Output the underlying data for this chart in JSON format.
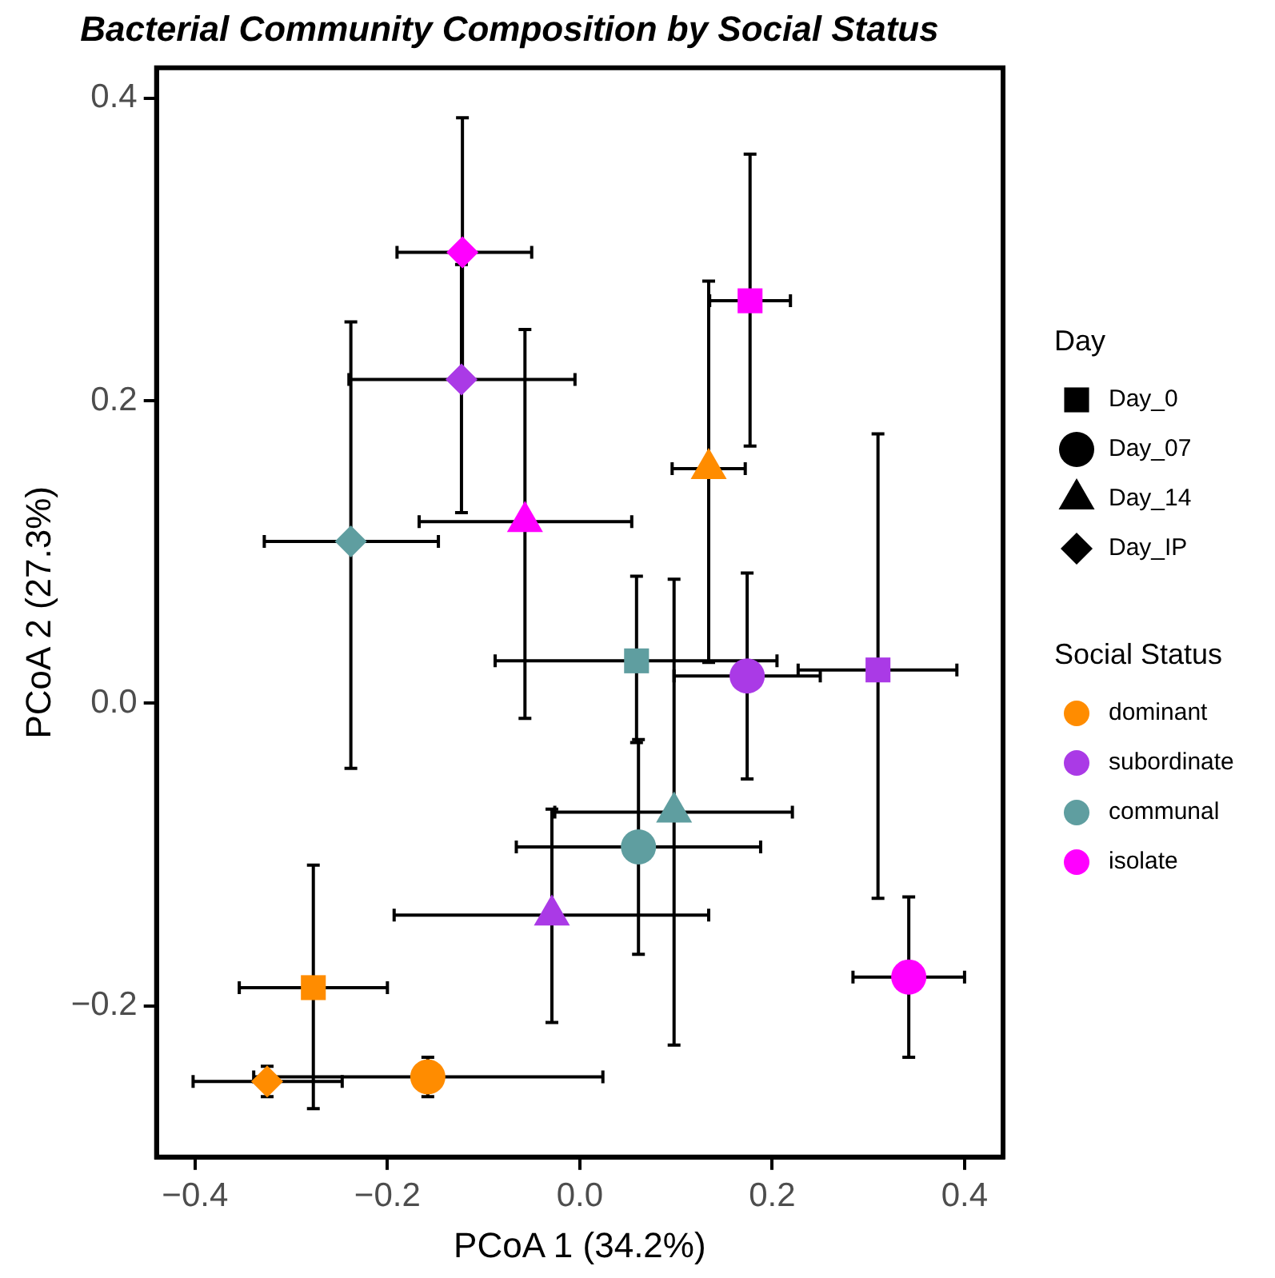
{
  "chart_data": {
    "type": "scatter",
    "title": "Bacterial Community Composition by Social Status",
    "xlabel": "PCoA 1 (34.2%)",
    "ylabel": "PCoA 2 (27.3%)",
    "legend_title": [
      "Day",
      "Social Status"
    ],
    "xlim": [
      -0.44,
      0.44
    ],
    "ylim": [
      -0.3,
      0.42
    ],
    "xticks": [
      {
        "value": -0.4,
        "label": "−0.4"
      },
      {
        "value": -0.2,
        "label": "−0.2"
      },
      {
        "value": 0,
        "label": "0.0"
      },
      0.2,
      0.4
    ],
    "yticks": [
      {
        "value": -0.2,
        "label": "−0.2"
      },
      {
        "value": 0,
        "label": "0.0"
      },
      0.2,
      0.4
    ],
    "grid": false,
    "legend": "right",
    "series": [
      {
        "name": "Day_0",
        "color": "#000000",
        "marker": "square"
      },
      {
        "name": "Day_07",
        "color": "#000000",
        "marker": "circle"
      },
      {
        "name": "Day_14",
        "color": "#000000",
        "marker": "triangle"
      },
      {
        "name": "Day_IP",
        "color": "#000000",
        "marker": "diamond"
      },
      {
        "name": "dominant",
        "color": "#ff8c00",
        "marker": [
          "square",
          "circle",
          "triangle",
          "diamond"
        ],
        "x": [
          -0.277,
          -0.158,
          0.134,
          -0.325
        ],
        "values": [
          -0.188,
          -0.247,
          0.155,
          -0.25
        ],
        "errors": [
          [
            -0.268,
            -0.107
          ],
          [
            -0.26,
            -0.234
          ],
          [
            0.027,
            0.279
          ],
          [
            -0.26,
            -0.24
          ]
        ],
        "xerrors": [
          [
            -0.354,
            -0.2
          ],
          [
            -0.339,
            0.024
          ],
          [
            0.096,
            0.172
          ],
          [
            -0.402,
            -0.247
          ]
        ]
      },
      {
        "name": "subordinate",
        "color": "#aa3ae6",
        "marker": [
          "square",
          "circle",
          "triangle",
          "diamond"
        ],
        "x": [
          0.31,
          0.174,
          -0.029,
          -0.123
        ],
        "values": [
          0.022,
          0.018,
          -0.14,
          0.214
        ],
        "errors": [
          [
            -0.129,
            0.178
          ],
          [
            -0.05,
            0.086
          ],
          [
            -0.211,
            -0.07
          ],
          [
            0.126,
            0.29
          ]
        ],
        "xerrors": [
          [
            0.227,
            0.392
          ],
          [
            0.098,
            0.25
          ],
          [
            -0.193,
            0.134
          ],
          [
            -0.24,
            -0.005
          ]
        ]
      },
      {
        "name": "communal",
        "color": "#5f9ea0",
        "marker": [
          "square",
          "circle",
          "triangle",
          "diamond"
        ],
        "x": [
          0.059,
          0.061,
          0.098,
          -0.238
        ],
        "values": [
          0.028,
          -0.095,
          -0.072,
          0.107
        ],
        "errors": [
          [
            -0.026,
            0.084
          ],
          [
            -0.166,
            -0.024
          ],
          [
            -0.226,
            0.082
          ],
          [
            -0.043,
            0.252
          ]
        ],
        "xerrors": [
          [
            -0.088,
            0.205
          ],
          [
            -0.066,
            0.188
          ],
          [
            -0.026,
            0.221
          ],
          [
            -0.328,
            -0.147
          ]
        ]
      },
      {
        "name": "isolate",
        "color": "#ff00ff",
        "marker": [
          "square",
          "circle",
          "triangle",
          "diamond"
        ],
        "x": [
          0.177,
          0.342,
          -0.057,
          -0.122
        ],
        "values": [
          0.266,
          -0.181,
          0.12,
          0.298
        ],
        "errors": [
          [
            0.17,
            0.363
          ],
          [
            -0.234,
            -0.128
          ],
          [
            -0.01,
            0.247
          ],
          [
            0.21,
            0.387
          ]
        ],
        "xerrors": [
          [
            0.135,
            0.219
          ],
          [
            0.284,
            0.4
          ],
          [
            -0.167,
            0.054
          ],
          [
            -0.19,
            -0.05
          ]
        ]
      }
    ]
  }
}
